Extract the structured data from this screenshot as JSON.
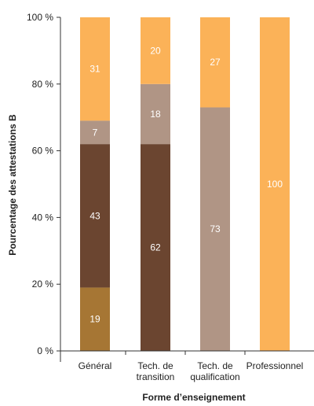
{
  "chart_data": {
    "type": "bar",
    "stacked": true,
    "categories": [
      [
        "Général"
      ],
      [
        "Tech. de",
        "transition"
      ],
      [
        "Tech. de",
        "qualification"
      ],
      [
        "Professionnel"
      ]
    ],
    "series": [
      {
        "color": "#a67634",
        "values": [
          19,
          0,
          0,
          0
        ]
      },
      {
        "color": "#6b4530",
        "values": [
          43,
          62,
          0,
          0
        ]
      },
      {
        "color": "#b09585",
        "values": [
          7,
          18,
          73,
          0
        ]
      },
      {
        "color": "#fbb258",
        "values": [
          31,
          20,
          27,
          100
        ]
      }
    ],
    "yticks": [
      "0 %",
      "20 %",
      "40 %",
      "60 %",
      "80 %",
      "100 %"
    ],
    "ylim": [
      0,
      100
    ],
    "xlabel": "Forme d’enseignement",
    "ylabel": "Pourcentage des attestations B",
    "grid": false
  }
}
